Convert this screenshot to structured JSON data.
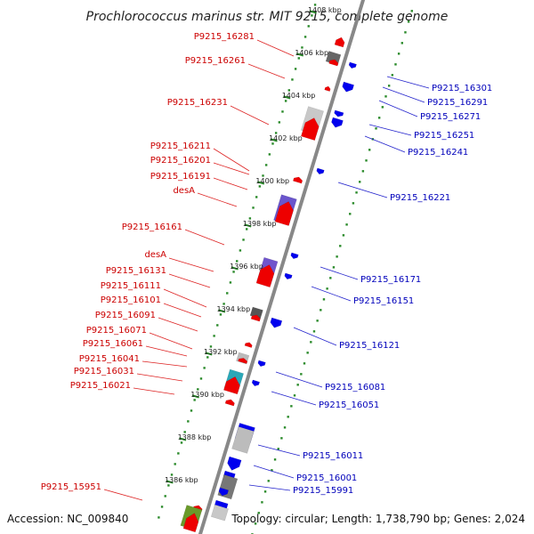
{
  "title": "Prochlorococcus marinus str. MIT 9215, complete genome",
  "accession": "Accession: NC_009840",
  "topology": "Topology: circular; Length: 1,738,790 bp; Genes: 2,024",
  "colors": {
    "forward": "#ee0000",
    "reverse": "#0000ee",
    "forward_label": "#cc0000",
    "reverse_label": "#0000bb",
    "backbone": "#888888",
    "ticks": "#2a8a2a"
  },
  "ticks": [
    "1408 kbp",
    "1406 kbp",
    "1404 kbp",
    "1402 kbp",
    "1400 kbp",
    "1398 kbp",
    "1396 kbp",
    "1394 kbp",
    "1392 kbp",
    "1390 kbp",
    "1388 kbp",
    "1386 kbp"
  ],
  "forward_labels": [
    "P9215_16281",
    "P9215_16261",
    "P9215_16231",
    "P9215_16211",
    "P9215_16201",
    "P9215_16191",
    "desA",
    "P9215_16161",
    "desA",
    "P9215_16131",
    "P9215_16111",
    "P9215_16101",
    "P9215_16091",
    "P9215_16071",
    "P9215_16061",
    "P9215_16041",
    "P9215_16031",
    "P9215_16021",
    "P9215_15951"
  ],
  "reverse_labels": [
    "P9215_16301",
    "P9215_16291",
    "P9215_16271",
    "P9215_16251",
    "P9215_16241",
    "P9215_16221",
    "P9215_16171",
    "P9215_16151",
    "P9215_16121",
    "P9215_16081",
    "P9215_16051",
    "P9215_16011",
    "P9215_16001",
    "P9215_15991"
  ]
}
